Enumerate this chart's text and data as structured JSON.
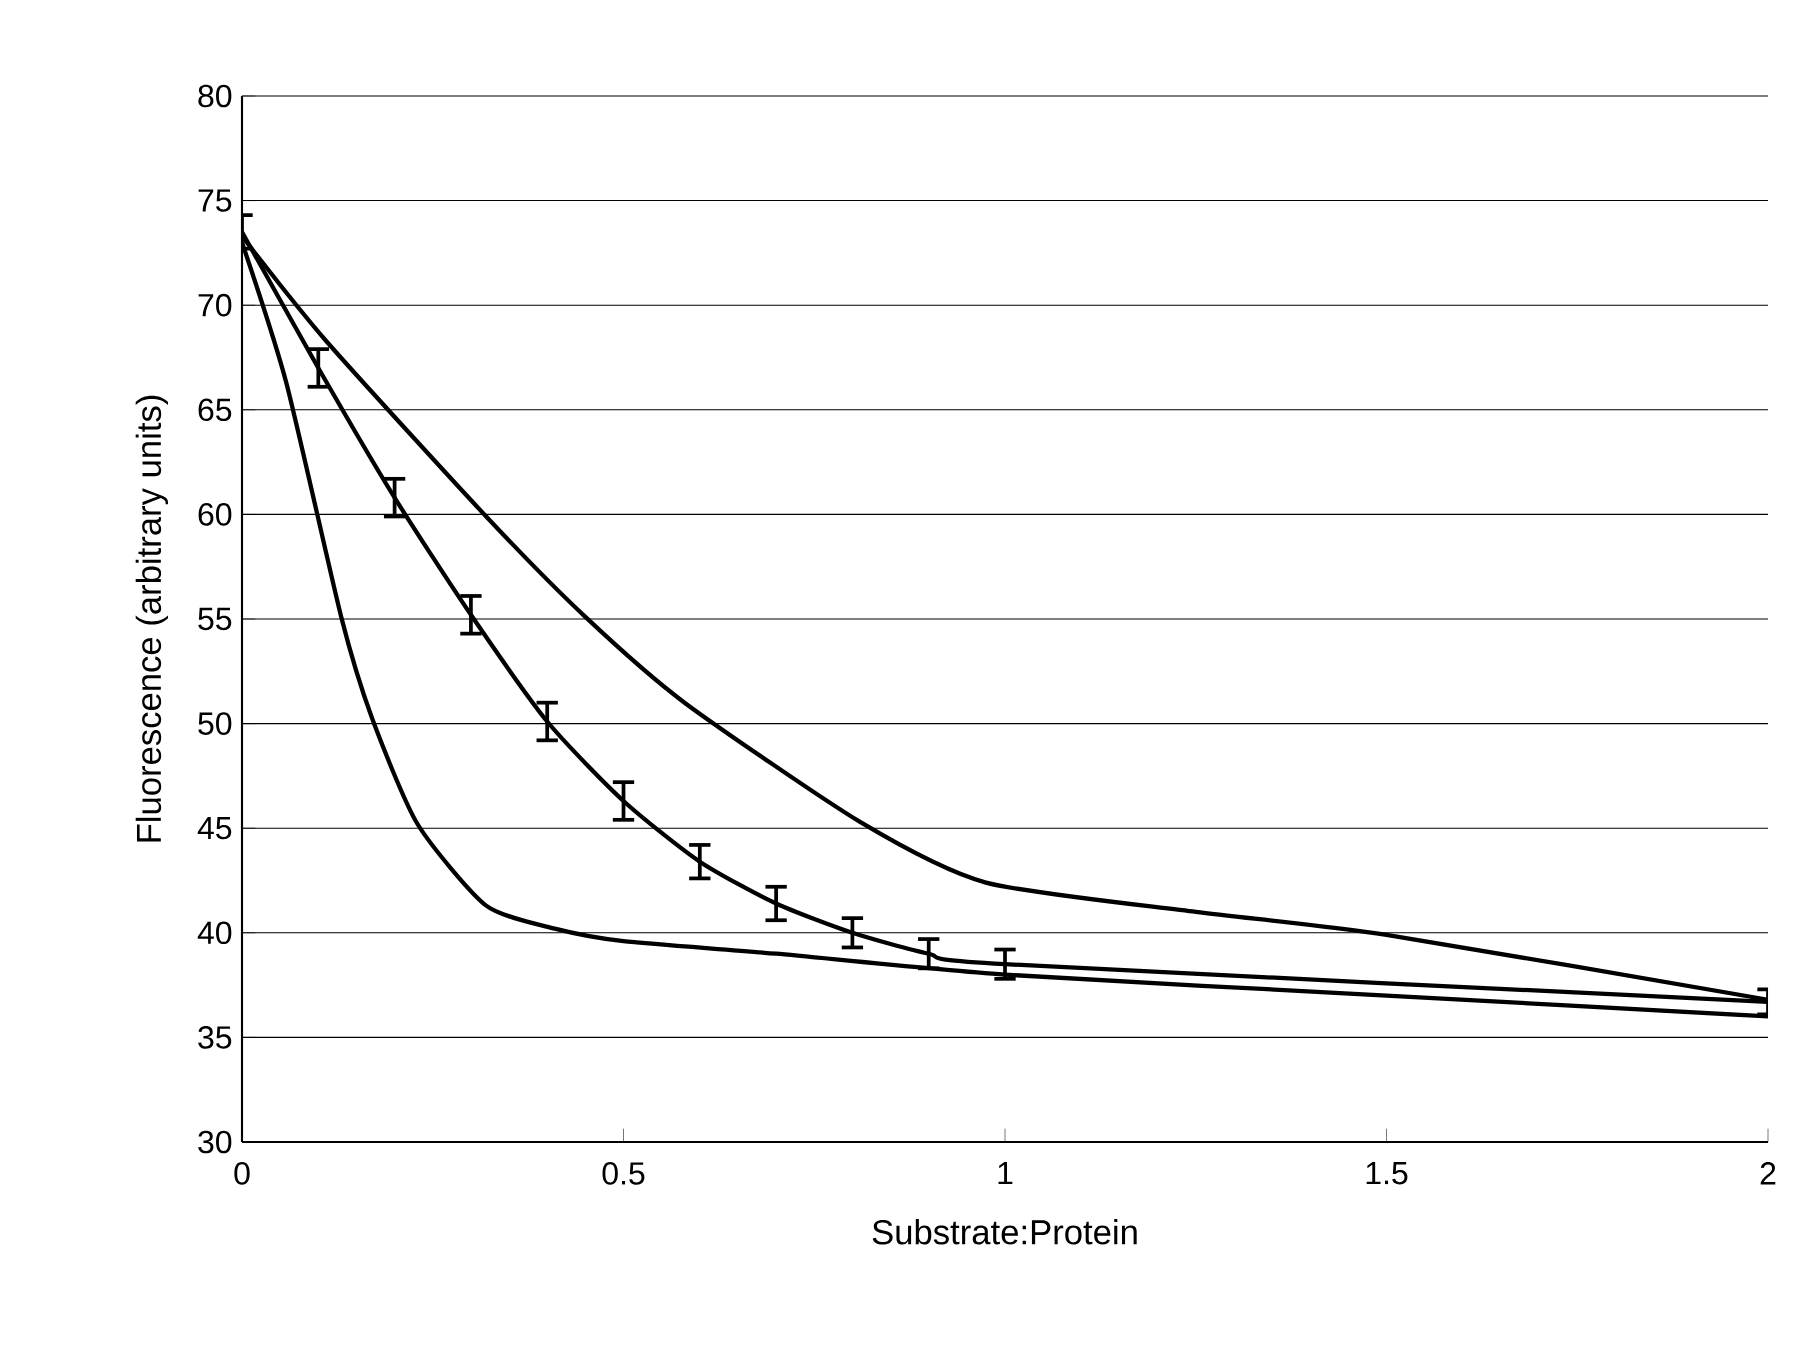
{
  "chart_data": {
    "type": "line",
    "xlabel": "Substrate:Protein",
    "ylabel": "Fluorescence (arbitrary units)",
    "xlim": [
      0,
      2
    ],
    "xticks": [
      0,
      0.5,
      1,
      1.5,
      2
    ],
    "ylim": [
      30,
      80
    ],
    "yticks": [
      30,
      35,
      40,
      45,
      50,
      55,
      60,
      65,
      70,
      75,
      80
    ],
    "grid": "y",
    "marker": "none",
    "line_style": "solid",
    "series": [
      {
        "color": "#000000",
        "x": [
          0,
          0.11,
          0.32,
          0.45,
          0.58,
          0.81,
          0.975,
          1.25,
          1.5,
          2
        ],
        "values": [
          73.3,
          68.3,
          59.9,
          55.1,
          51.0,
          45.3,
          42.4,
          41.0,
          39.9,
          36.8
        ]
      },
      {
        "color": "#000000",
        "x": [
          0,
          0.1,
          0.2,
          0.3,
          0.4,
          0.5,
          0.6,
          0.7,
          0.8,
          0.9,
          1,
          2
        ],
        "values": [
          73.5,
          67,
          60.8,
          55.2,
          50.1,
          46.3,
          43.4,
          41.4,
          40.0,
          39.0,
          38.5,
          36.7
        ],
        "errors": [
          0.8,
          0.9,
          0.9,
          0.9,
          0.9,
          0.9,
          0.8,
          0.8,
          0.7,
          0.7,
          0.7,
          0.6
        ]
      },
      {
        "color": "#000000",
        "x": [
          0,
          0.058,
          0.13,
          0.17,
          0.23,
          0.32,
          0.41,
          0.5,
          0.7,
          1,
          1.5,
          2
        ],
        "values": [
          73.0,
          66.3,
          55.1,
          50.3,
          45.2,
          41.3,
          40.2,
          39.6,
          39.0,
          38.0,
          37.0,
          36.0
        ]
      }
    ]
  }
}
